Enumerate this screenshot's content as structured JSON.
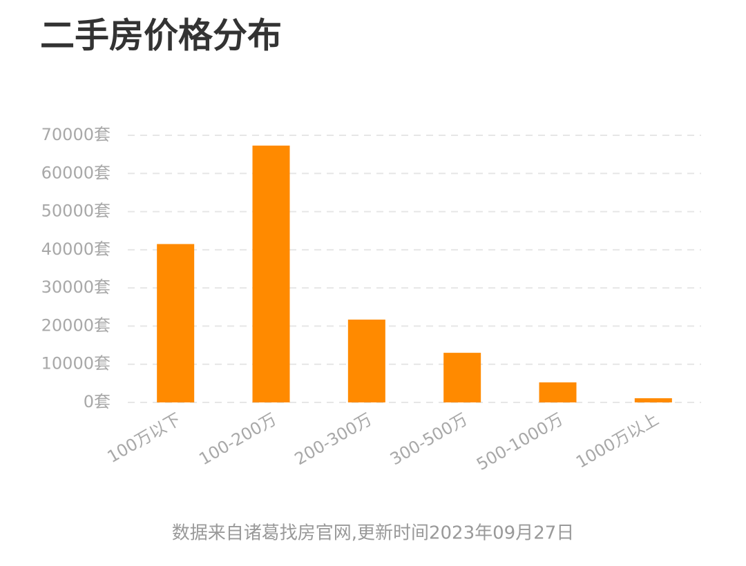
{
  "chart_data": {
    "type": "bar",
    "title": "二手房价格分布",
    "categories": [
      "100万以下",
      "100-200万",
      "200-300万",
      "300-500万",
      "500-1000万",
      "1000万以上"
    ],
    "values": [
      41500,
      67300,
      21700,
      13000,
      5250,
      1100
    ],
    "color": "#ff8a00",
    "ylim": [
      0,
      70000
    ],
    "yticks": [
      {
        "value": 0,
        "label": "0套"
      },
      {
        "value": 10000,
        "label": "10000套"
      },
      {
        "value": 20000,
        "label": "20000套"
      },
      {
        "value": 30000,
        "label": "30000套"
      },
      {
        "value": 40000,
        "label": "40000套"
      },
      {
        "value": 50000,
        "label": "50000套"
      },
      {
        "value": 60000,
        "label": "60000套"
      },
      {
        "value": 70000,
        "label": "70000套"
      }
    ],
    "grid": true,
    "source": "数据来自诸葛找房官网,更新时间2023年09月27日"
  }
}
